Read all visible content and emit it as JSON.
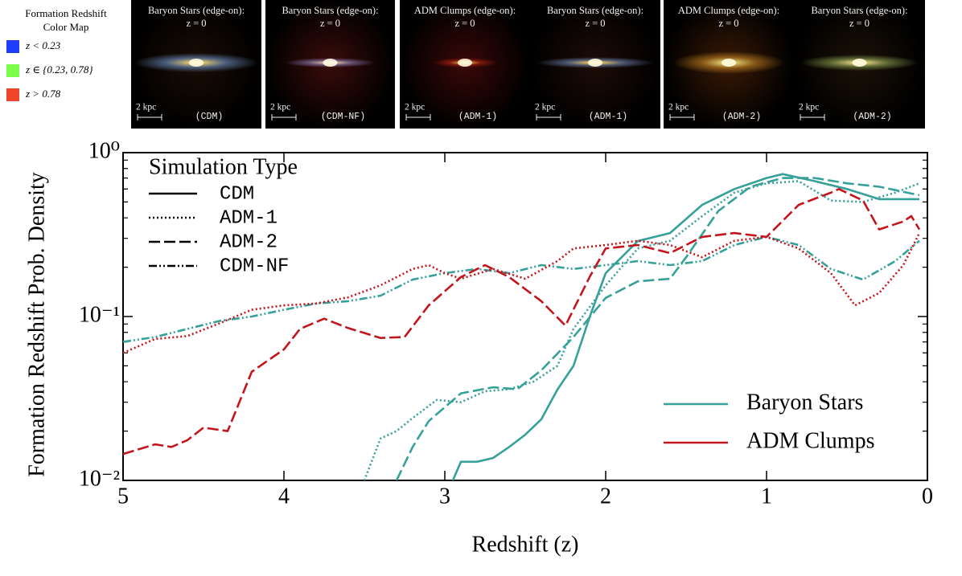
{
  "colormap": {
    "title_lines": [
      "Formation Redshift",
      "Color Map"
    ],
    "entries": [
      {
        "label": "z < 0.23",
        "color": "#1f3cff"
      },
      {
        "label": "z ∈ {0.23, 0.78}",
        "color": "#7cff4a"
      },
      {
        "label": "z > 0.78",
        "color": "#f0442c"
      }
    ]
  },
  "panels": [
    {
      "title": "Baryon Stars (edge-on):",
      "subtitle": "z = 0",
      "scale": "2 kpc",
      "label": "(CDM)"
    },
    {
      "title": "Baryon Stars (edge-on):",
      "subtitle": "z = 0",
      "scale": "2 kpc",
      "label": "(CDM-NF)"
    },
    {
      "title": "ADM Clumps (edge-on):",
      "subtitle": "z = 0",
      "scale": "2 kpc",
      "label": "(ADM-1)"
    },
    {
      "title": "Baryon Stars (edge-on):",
      "subtitle": "z = 0",
      "scale": "2 kpc",
      "label": "(ADM-1)"
    },
    {
      "title": "ADM Clumps (edge-on):",
      "subtitle": "z = 0",
      "scale": "2 kpc",
      "label": "(ADM-2)"
    },
    {
      "title": "Baryon Stars (edge-on):",
      "subtitle": "z = 0",
      "scale": "2 kpc",
      "label": "(ADM-2)"
    }
  ],
  "chart_data": {
    "type": "line",
    "xlabel": "Redshift (z)",
    "ylabel": "Formation Redshift Prob. Density",
    "xlim": [
      5,
      0
    ],
    "xticks": [
      5,
      4,
      3,
      2,
      1,
      0
    ],
    "ylim": [
      0.01,
      1
    ],
    "log_y": true,
    "yticks": [
      {
        "value": 1,
        "label": "10⁰"
      },
      {
        "value": 0.1,
        "label": "10⁻¹"
      },
      {
        "value": 0.01,
        "label": "10⁻²"
      }
    ],
    "y_minor_ticks": [
      0.02,
      0.03,
      0.04,
      0.05,
      0.06,
      0.07,
      0.08,
      0.09,
      0.2,
      0.3,
      0.4,
      0.5,
      0.6,
      0.7,
      0.8,
      0.9
    ],
    "style_legend_title": "Simulation Type",
    "simulation_types": [
      {
        "name": "CDM",
        "dash": "solid"
      },
      {
        "name": "ADM-1",
        "dash": "dotted"
      },
      {
        "name": "ADM-2",
        "dash": "dashed"
      },
      {
        "name": "CDM-NF",
        "dash": "dashdot"
      }
    ],
    "components": [
      {
        "name": "Baryon Stars",
        "color": "#36a09b"
      },
      {
        "name": "ADM Clumps",
        "color": "#c2161c"
      }
    ],
    "series": [
      {
        "component": "Baryon Stars",
        "simulation": "CDM",
        "x": [
          2.95,
          2.9,
          2.8,
          2.7,
          2.6,
          2.5,
          2.4,
          2.3,
          2.2,
          2.1,
          2.0,
          1.8,
          1.6,
          1.4,
          1.2,
          1.0,
          0.9,
          0.7,
          0.5,
          0.3,
          0.05
        ],
        "values": [
          0.01,
          0.013,
          0.013,
          0.0137,
          0.016,
          0.019,
          0.0236,
          0.0358,
          0.05,
          0.099,
          0.184,
          0.289,
          0.323,
          0.48,
          0.6,
          0.7,
          0.74,
          0.67,
          0.6,
          0.52,
          0.52
        ]
      },
      {
        "component": "Baryon Stars",
        "simulation": "ADM-1",
        "x": [
          3.5,
          3.4,
          3.3,
          3.2,
          3.05,
          2.9,
          2.75,
          2.6,
          2.45,
          2.3,
          2.2,
          2.0,
          1.8,
          1.6,
          1.4,
          1.2,
          1.0,
          0.8,
          0.6,
          0.4,
          0.2,
          0.05
        ],
        "values": [
          0.01,
          0.018,
          0.02,
          0.024,
          0.031,
          0.03,
          0.035,
          0.036,
          0.04,
          0.05,
          0.084,
          0.155,
          0.26,
          0.29,
          0.41,
          0.57,
          0.65,
          0.67,
          0.51,
          0.5,
          0.57,
          0.65
        ]
      },
      {
        "component": "Baryon Stars",
        "simulation": "ADM-2",
        "x": [
          3.3,
          3.2,
          3.1,
          2.9,
          2.7,
          2.55,
          2.4,
          2.2,
          2.0,
          1.8,
          1.6,
          1.5,
          1.3,
          1.1,
          0.9,
          0.7,
          0.5,
          0.3,
          0.05
        ],
        "values": [
          0.01,
          0.016,
          0.023,
          0.034,
          0.037,
          0.036,
          0.047,
          0.075,
          0.13,
          0.164,
          0.17,
          0.23,
          0.44,
          0.62,
          0.7,
          0.7,
          0.65,
          0.62,
          0.55
        ]
      },
      {
        "component": "Baryon Stars",
        "simulation": "CDM-NF",
        "x": [
          5,
          4.8,
          4.6,
          4.4,
          4.2,
          4.0,
          3.8,
          3.6,
          3.4,
          3.2,
          3.0,
          2.8,
          2.6,
          2.4,
          2.2,
          2.0,
          1.8,
          1.6,
          1.4,
          1.2,
          1.0,
          0.8,
          0.6,
          0.4,
          0.2,
          0.05
        ],
        "values": [
          0.07,
          0.075,
          0.084,
          0.094,
          0.1,
          0.11,
          0.12,
          0.124,
          0.134,
          0.168,
          0.184,
          0.195,
          0.184,
          0.206,
          0.195,
          0.206,
          0.218,
          0.206,
          0.218,
          0.273,
          0.306,
          0.273,
          0.195,
          0.168,
          0.218,
          0.29
        ]
      },
      {
        "component": "ADM Clumps",
        "simulation": "ADM-1",
        "x": [
          5,
          4.8,
          4.6,
          4.4,
          4.2,
          4.0,
          3.8,
          3.6,
          3.4,
          3.2,
          3.1,
          3.0,
          2.9,
          2.7,
          2.5,
          2.3,
          2.2,
          2.0,
          1.8,
          1.6,
          1.4,
          1.2,
          1.0,
          0.8,
          0.6,
          0.45,
          0.3,
          0.15,
          0.05
        ],
        "values": [
          0.06,
          0.073,
          0.076,
          0.091,
          0.11,
          0.117,
          0.12,
          0.131,
          0.155,
          0.195,
          0.206,
          0.184,
          0.17,
          0.195,
          0.17,
          0.218,
          0.26,
          0.273,
          0.29,
          0.273,
          0.23,
          0.29,
          0.306,
          0.26,
          0.184,
          0.117,
          0.139,
          0.206,
          0.323
        ]
      },
      {
        "component": "ADM Clumps",
        "simulation": "ADM-2",
        "x": [
          5,
          4.8,
          4.7,
          4.6,
          4.5,
          4.35,
          4.2,
          4.0,
          3.9,
          3.75,
          3.6,
          3.4,
          3.25,
          3.1,
          2.9,
          2.75,
          2.6,
          2.4,
          2.25,
          2.1,
          2.0,
          1.8,
          1.6,
          1.4,
          1.2,
          1.0,
          0.8,
          0.6,
          0.55,
          0.4,
          0.3,
          0.15,
          0.1,
          0.05
        ],
        "values": [
          0.0145,
          0.0166,
          0.016,
          0.0176,
          0.021,
          0.02,
          0.046,
          0.063,
          0.084,
          0.097,
          0.085,
          0.074,
          0.075,
          0.117,
          0.174,
          0.206,
          0.174,
          0.124,
          0.088,
          0.174,
          0.26,
          0.273,
          0.244,
          0.306,
          0.323,
          0.306,
          0.48,
          0.57,
          0.6,
          0.51,
          0.34,
          0.38,
          0.41,
          0.34
        ]
      }
    ]
  }
}
